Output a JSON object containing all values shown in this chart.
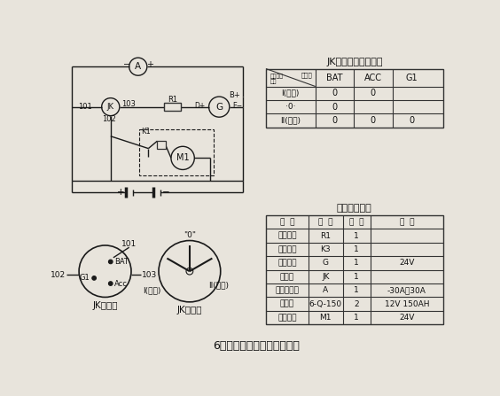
{
  "title": "6缸机型起动系统线路示意图",
  "table1_title": "JK各位置通电状态图",
  "table1_header": [
    "",
    "BAT",
    "ACC",
    "G1"
  ],
  "table1_diag_top": "接线端",
  "table1_diag_bot": "通电状态\n位置",
  "table1_rows": [
    [
      "I(充电)",
      "0",
      "0",
      ""
    ],
    [
      "·0·",
      "0",
      "",
      ""
    ],
    [
      "II(起动)",
      "0",
      "0",
      "0"
    ]
  ],
  "table2_title": "电气元器件表",
  "table2_header": [
    "名  称",
    "型  号",
    "数  量",
    "参  数"
  ],
  "table2_rows": [
    [
      "励磁电阻",
      "R1",
      "1",
      ""
    ],
    [
      "起动按钮",
      "K3",
      "1",
      ""
    ],
    [
      "充电电机",
      "G",
      "1",
      "24V"
    ],
    [
      "电钥匙",
      "JK",
      "1",
      ""
    ],
    [
      "充电电流表",
      "A",
      "1",
      "-30A～30A"
    ],
    [
      "蓄电池",
      "6-Q-150",
      "2",
      "12V 150AH"
    ],
    [
      "起动马达",
      "M1",
      "1",
      "24V"
    ]
  ],
  "bg_color": "#e8e4dc",
  "line_color": "#1a1a1a",
  "table_line_color": "#333333",
  "text_color": "#111111",
  "label1": "JK接线图",
  "label2": "JK位置图"
}
